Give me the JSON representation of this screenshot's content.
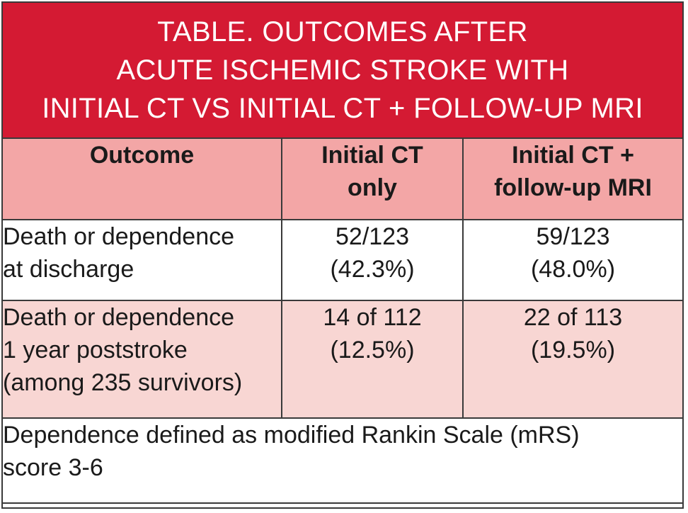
{
  "title": {
    "lines": [
      "TABLE. OUTCOMES AFTER",
      "ACUTE ISCHEMIC STROKE WITH",
      "INITIAL CT VS INITIAL CT + FOLLOW-UP MRI"
    ]
  },
  "table": {
    "headers": [
      {
        "lines": [
          "Outcome"
        ]
      },
      {
        "lines": [
          "Initial CT",
          "only"
        ]
      },
      {
        "lines": [
          "Initial CT +",
          "follow-up MRI"
        ]
      }
    ],
    "rows": [
      {
        "outcome": [
          "Death or dependence",
          "at discharge"
        ],
        "ct_only": [
          "52/123",
          "(42.3%)"
        ],
        "ct_mri": [
          "59/123",
          "(48.0%)"
        ]
      },
      {
        "outcome": [
          "Death or dependence",
          "1 year poststroke",
          "(among 235 survivors)"
        ],
        "ct_only": [
          "14 of 112",
          "(12.5%)"
        ],
        "ct_mri": [
          "22 of 113",
          "(19.5%)"
        ]
      }
    ],
    "footnote": [
      "Dependence defined as modified Rankin Scale (mRS)",
      "score 3-6"
    ]
  },
  "colors": {
    "title_bg": "#d41a33",
    "header_bg": "#f3a6a6",
    "alt_row_bg": "#f8d6d3",
    "border": "#3a3a3a"
  }
}
